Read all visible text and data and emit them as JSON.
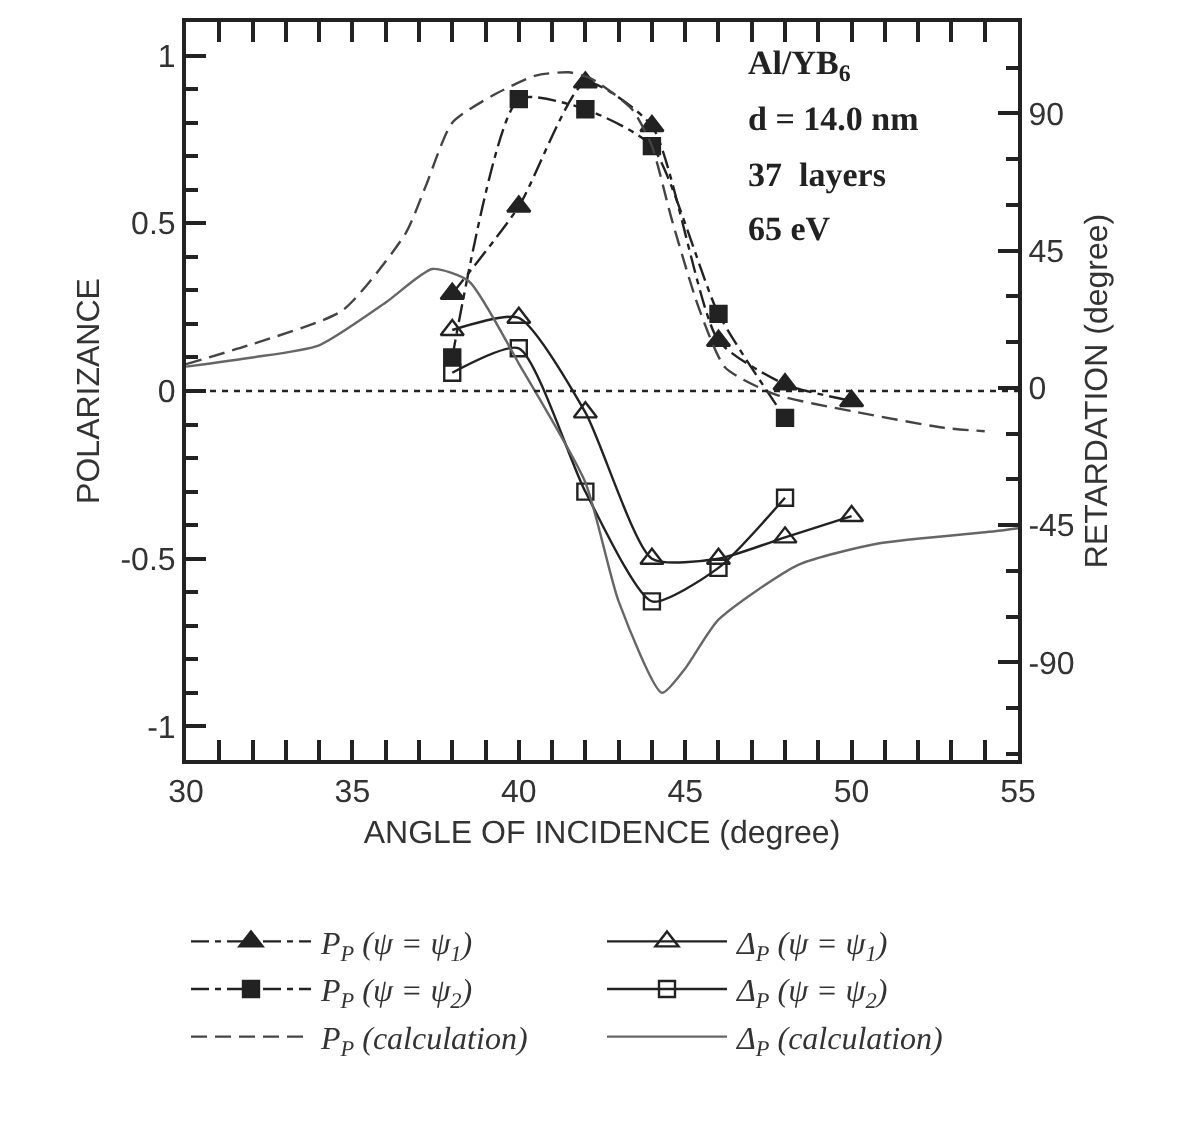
{
  "chart_data": {
    "type": "line",
    "xlabel": "ANGLE OF INCIDENCE (degree)",
    "ylabel": "POLARIZANCE",
    "y2label": "RETARDATION (degree)",
    "xlim": [
      30,
      55
    ],
    "xticks": [
      30,
      35,
      40,
      45,
      50,
      55
    ],
    "ylim": [
      -1.1,
      1.1
    ],
    "yticks": [
      -1,
      -0.5,
      0,
      0.5,
      1
    ],
    "y2lim": [
      -122,
      120
    ],
    "y2ticks": [
      -90,
      -45,
      0,
      45,
      90
    ],
    "annotations": [
      "Al/YB$_{6}$",
      "d = 14.0 nm",
      "37  layers",
      "65 eV"
    ],
    "ref_lines": [
      {
        "axis": "y",
        "value": 0,
        "line_style": "dotted",
        "color": "#222222"
      }
    ],
    "legend": "bottom",
    "series": [
      {
        "name": "P$_{P}$ (ψ = ψ$_{1}$)",
        "color": "#222222",
        "marker": "triangle",
        "line_style": "dashdot",
        "x": [
          38,
          40,
          42,
          44,
          46,
          48,
          50
        ],
        "values": [
          0.29,
          0.55,
          0.92,
          0.79,
          0.15,
          0.02,
          -0.03
        ]
      },
      {
        "name": "Δ$_{P}$ (ψ = ψ$_{1}$)",
        "color": "#222222",
        "axis": "y2",
        "marker": "triangle-open",
        "line_style": "solid",
        "x": [
          38,
          40,
          42,
          44,
          46,
          48,
          50
        ],
        "values": [
          19,
          23,
          -8,
          -56,
          -56,
          -49,
          -42
        ]
      },
      {
        "name": "P$_{P}$ (ψ = ψ$_{2}$)",
        "color": "#222222",
        "marker": "square",
        "line_style": "dashdot",
        "x": [
          38,
          40,
          42,
          44,
          46,
          48
        ],
        "values": [
          0.1,
          0.87,
          0.84,
          0.73,
          0.23,
          -0.08
        ]
      },
      {
        "name": "Δ$_{P}$ (ψ = ψ$_{2}$)",
        "color": "#222222",
        "axis": "y2",
        "marker": "square-open",
        "line_style": "solid",
        "x": [
          38,
          40,
          42,
          44,
          46,
          48
        ],
        "values": [
          5,
          13,
          -34,
          -70,
          -59,
          -36
        ]
      },
      {
        "name": "P$_{P}$ (calculation)",
        "color": "#444444",
        "marker": "none",
        "line_style": "longdash",
        "x": [
          30,
          32,
          34.7,
          36.6,
          37.2,
          38,
          39.2,
          40.5,
          41.5,
          42.2,
          43.4,
          44,
          44.6,
          45.4,
          46.2,
          47.7,
          50,
          52.8,
          54
        ],
        "values": [
          0.08,
          0.14,
          0.24,
          0.47,
          0.61,
          0.8,
          0.88,
          0.94,
          0.95,
          0.93,
          0.84,
          0.73,
          0.51,
          0.25,
          0.07,
          -0.01,
          -0.06,
          -0.11,
          -0.12
        ]
      },
      {
        "name": "Δ$_{P}$ (calculation)",
        "color": "#666666",
        "axis": "y2",
        "marker": "none",
        "line_style": "solid",
        "x": [
          30,
          32,
          34,
          36,
          37.4,
          38.5,
          40,
          42,
          43,
          44.3,
          45,
          46,
          48.4,
          50.8,
          54.3,
          55
        ],
        "values": [
          7,
          10,
          14,
          28,
          39,
          35,
          8,
          -31,
          -70,
          -100,
          -92,
          -76,
          -58,
          -51,
          -47,
          -46
        ]
      }
    ]
  }
}
